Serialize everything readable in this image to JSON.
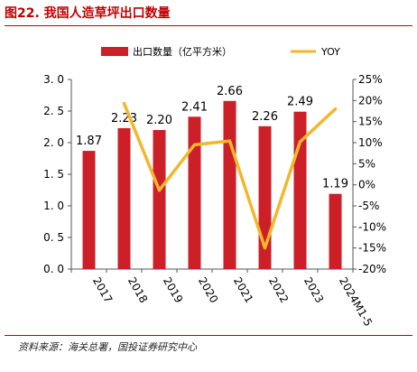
{
  "header": {
    "title": "图22. 我国人造草坪出口数量"
  },
  "footer": {
    "source": "资料来源：海关总署，国投证券研究中心"
  },
  "colors": {
    "bar": "#cc1f27",
    "line": "#f2b72b",
    "title": "#c00000"
  },
  "chart_data": {
    "type": "bar",
    "categories": [
      "2017",
      "2018",
      "2019",
      "2020",
      "2021",
      "2022",
      "2023",
      "2024M1-5"
    ],
    "series": [
      {
        "name": "出口数量（亿平方米）",
        "type": "bar",
        "axis": "left",
        "values": [
          1.87,
          2.23,
          2.2,
          2.41,
          2.66,
          2.26,
          2.49,
          1.19
        ],
        "labels": [
          "1.87",
          "2.23",
          "2.20",
          "2.41",
          "2.66",
          "2.26",
          "2.49",
          "1.19"
        ]
      },
      {
        "name": "YOY",
        "type": "line",
        "axis": "right",
        "values": [
          null,
          19.3,
          -1.3,
          9.5,
          10.4,
          -15.0,
          10.2,
          18.0
        ]
      }
    ],
    "left_axis": {
      "ylim": [
        0,
        3.0
      ],
      "ticks": [
        0,
        0.5,
        1.0,
        1.5,
        2.0,
        2.5,
        3.0
      ],
      "tick_labels": [
        "0. 0",
        "0. 5",
        "1. 0",
        "1. 5",
        "2. 0",
        "2. 5",
        "3. 0"
      ]
    },
    "right_axis": {
      "ylim": [
        -20,
        25
      ],
      "ticks": [
        -20,
        -15,
        -10,
        -5,
        0,
        5,
        10,
        15,
        20,
        25
      ],
      "tick_labels": [
        "-20%",
        "-15%",
        "-10%",
        "-5%",
        "0%",
        "5%",
        "10%",
        "15%",
        "20%",
        "25%"
      ]
    },
    "legend": "top",
    "grid": false
  }
}
